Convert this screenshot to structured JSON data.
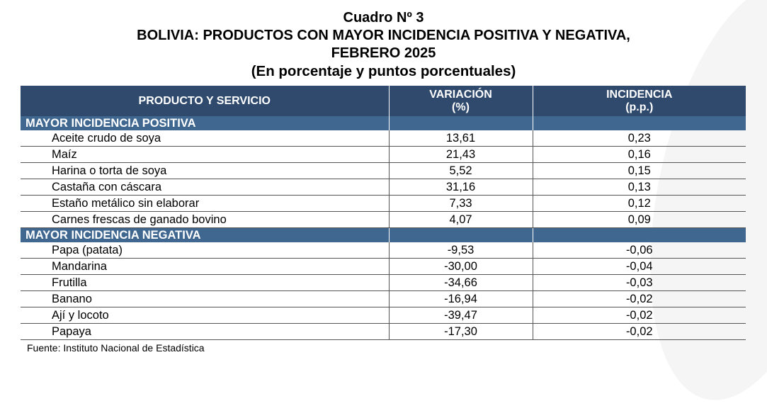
{
  "title": {
    "line1": "Cuadro Nº 3",
    "line2": "BOLIVIA: PRODUCTOS CON MAYOR INCIDENCIA POSITIVA Y NEGATIVA,",
    "line3": "FEBRERO 2025",
    "line4": "(En porcentaje y puntos porcentuales)"
  },
  "table": {
    "headers": {
      "product": "PRODUCTO Y SERVICIO",
      "variation_line1": "VARIACIÓN",
      "variation_line2": "(%)",
      "incidence_line1": "INCIDENCIA",
      "incidence_line2": "(p.p.)"
    },
    "positive_section": {
      "label": "MAYOR INCIDENCIA POSITIVA",
      "rows": [
        {
          "product": "Aceite crudo de soya",
          "variation": "13,61",
          "incidence": "0,23"
        },
        {
          "product": "Maíz",
          "variation": "21,43",
          "incidence": "0,16"
        },
        {
          "product": "Harina o torta de soya",
          "variation": "5,52",
          "incidence": "0,15"
        },
        {
          "product": "Castaña con cáscara",
          "variation": "31,16",
          "incidence": "0,13"
        },
        {
          "product": "Estaño metálico sin elaborar",
          "variation": "7,33",
          "incidence": "0,12"
        },
        {
          "product": "Carnes frescas de ganado bovino",
          "variation": "4,07",
          "incidence": "0,09"
        }
      ]
    },
    "negative_section": {
      "label": "MAYOR INCIDENCIA NEGATIVA",
      "rows": [
        {
          "product": "Papa (patata)",
          "variation": "-9,53",
          "incidence": "-0,06"
        },
        {
          "product": "Mandarina",
          "variation": "-30,00",
          "incidence": "-0,04"
        },
        {
          "product": "Frutilla",
          "variation": "-34,66",
          "incidence": "-0,03"
        },
        {
          "product": "Banano",
          "variation": "-16,94",
          "incidence": "-0,02"
        },
        {
          "product": "Ají y locoto",
          "variation": "-39,47",
          "incidence": "-0,02"
        },
        {
          "product": "Papaya",
          "variation": "-17,30",
          "incidence": "-0,02"
        }
      ]
    }
  },
  "source": "Fuente: Instituto Nacional de Estadística",
  "colors": {
    "header_bg": "#2f4a6d",
    "section_bg": "#3f6790"
  }
}
